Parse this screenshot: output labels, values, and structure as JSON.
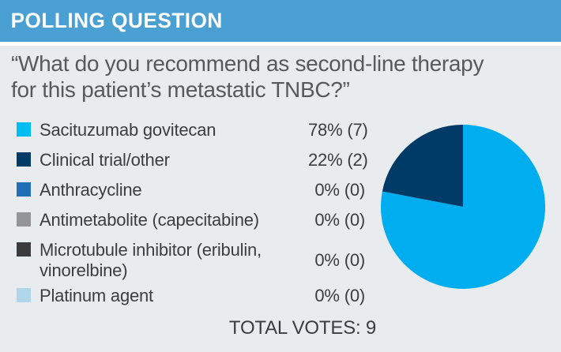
{
  "header": {
    "title": "POLLING QUESTION"
  },
  "question": {
    "lines": [
      "“What do you recommend as second-line therapy",
      "for this patient’s metastatic TNBC?”"
    ]
  },
  "legend": {
    "items": [
      {
        "label": "Sacituzumab govitecan",
        "value": "78% (7)",
        "color": "#00BDF2"
      },
      {
        "label": "Clinical trial/other",
        "value": "22% (2)",
        "color": "#003A66"
      },
      {
        "label": "Anthracycline",
        "value": "0% (0)",
        "color": "#1F6FB6"
      },
      {
        "label": "Antimetabolite (capecitabine)",
        "value": "0% (0)",
        "color": "#939598"
      },
      {
        "label": "Microtubule inhibitor (eribulin, vinorelbine)",
        "value": "0% (0)",
        "color": "#3B3B3C"
      },
      {
        "label": "Platinum agent",
        "value": "0% (0)",
        "color": "#AFD6EA"
      }
    ]
  },
  "footer": {
    "total_votes_label": "TOTAL VOTES: 9"
  },
  "chart_data": {
    "type": "pie",
    "title": "POLLING QUESTION",
    "categories": [
      "Sacituzumab govitecan",
      "Clinical trial/other",
      "Anthracycline",
      "Antimetabolite (capecitabine)",
      "Microtubule inhibitor (eribulin, vinorelbine)",
      "Platinum agent"
    ],
    "values": [
      7,
      2,
      0,
      0,
      0,
      0
    ],
    "percents": [
      78,
      22,
      0,
      0,
      0,
      0
    ],
    "colors": [
      "#00AEEF",
      "#003A66",
      "#1F6FB6",
      "#939598",
      "#3B3B3C",
      "#AFD6EA"
    ],
    "total_votes": 9,
    "legend_position": "left",
    "start_angle_deg": 0,
    "direction": "clockwise"
  },
  "colors": {
    "header_bg": "#4A9FD3",
    "body_bg": "#E8ECEE",
    "question_text": "#58595C",
    "label_text": "#3A3E41",
    "total_text": "#393E42"
  }
}
